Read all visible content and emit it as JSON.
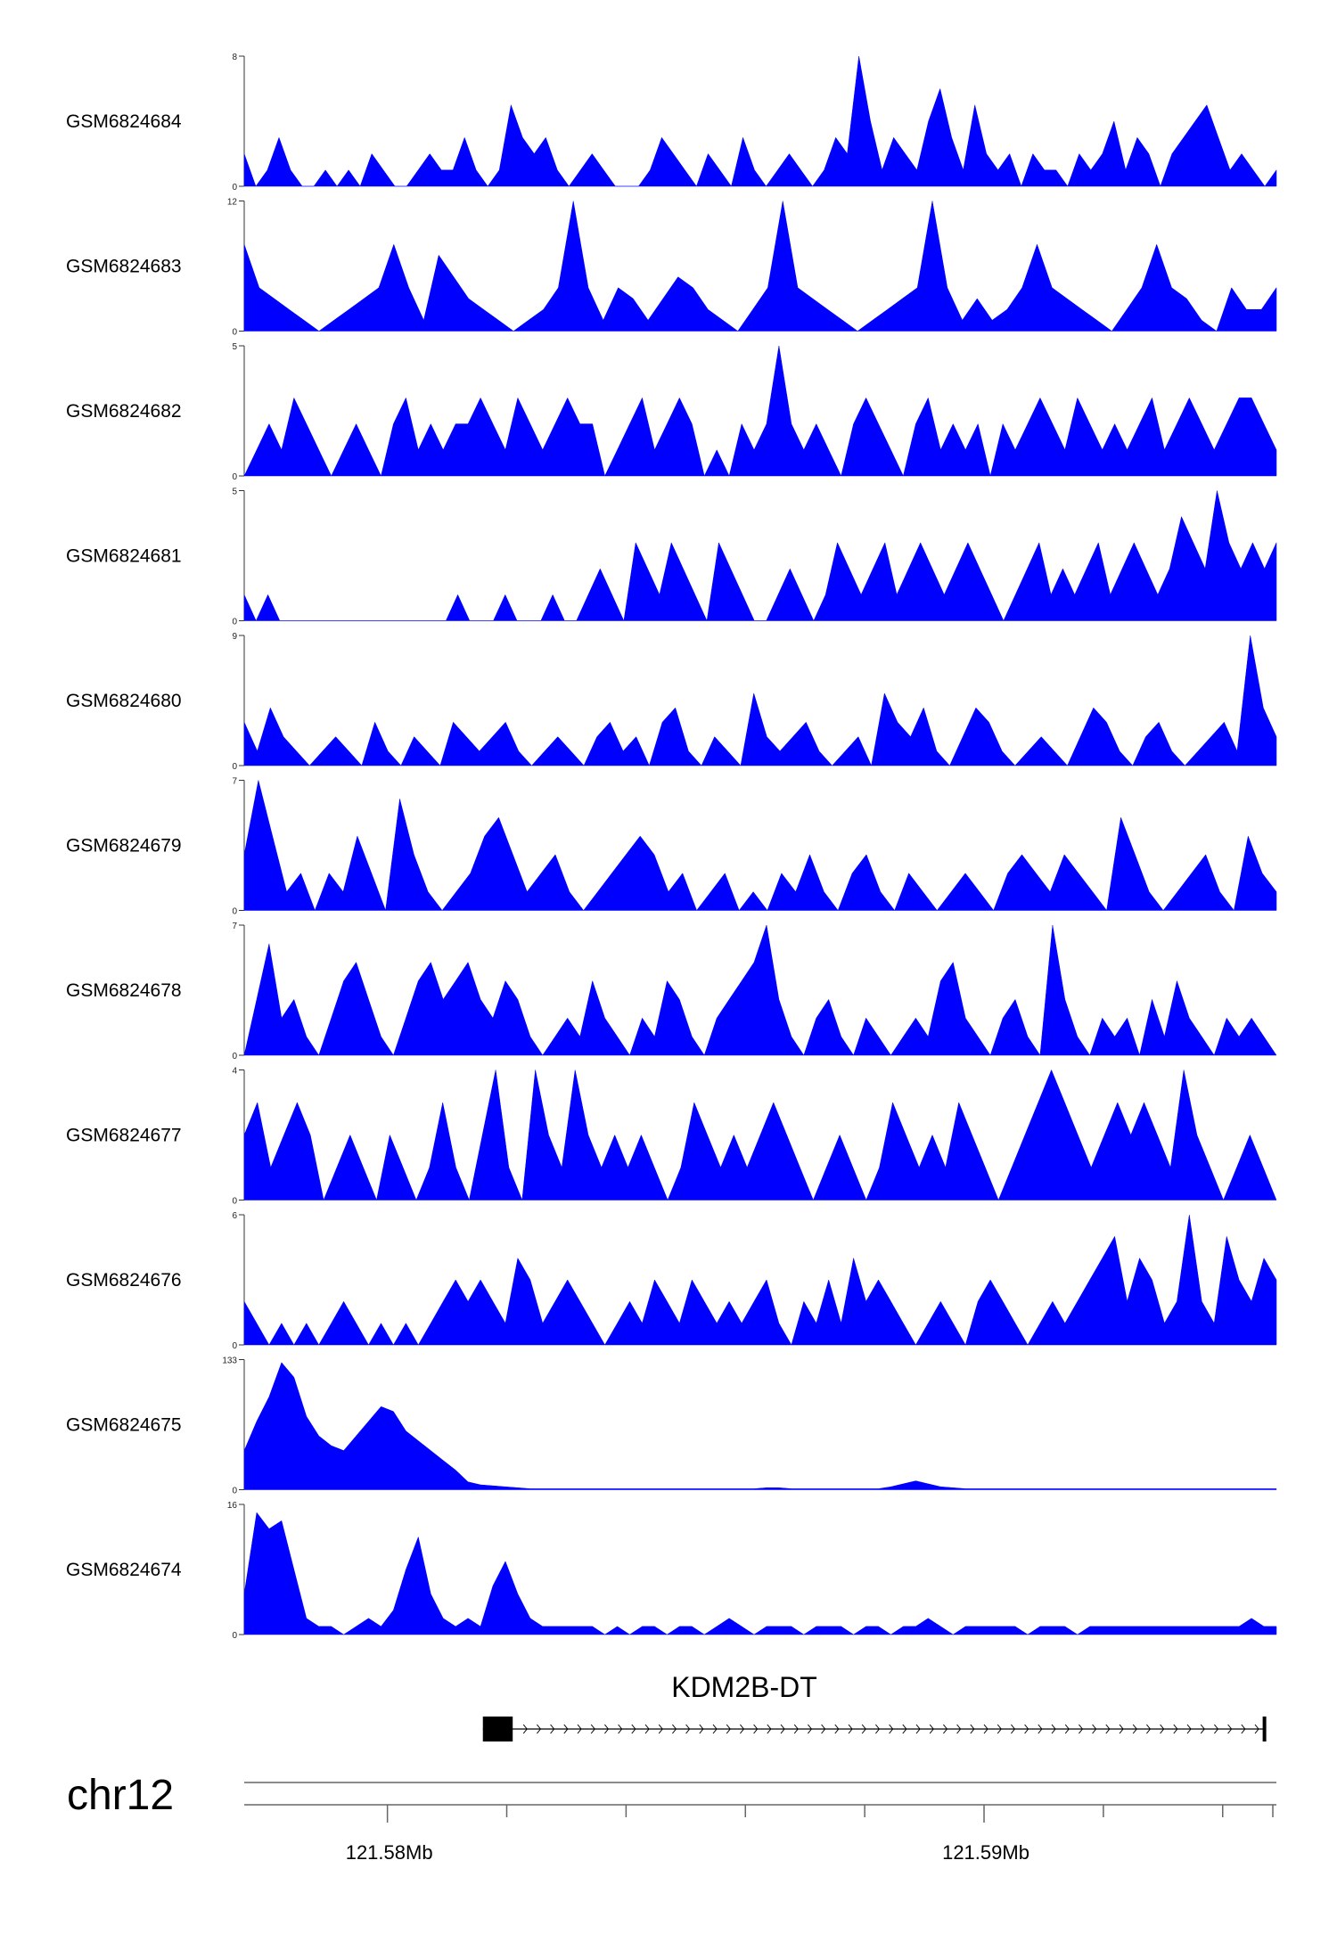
{
  "chart_data": {
    "type": "area",
    "tracks": [
      {
        "name": "GSM6824684",
        "ymax": 8,
        "color": "#0000ff",
        "values": [
          2,
          0,
          1,
          3,
          1,
          0,
          0,
          1,
          0,
          1,
          0,
          2,
          1,
          0,
          0,
          1,
          2,
          1,
          1,
          3,
          1,
          0,
          1,
          5,
          3,
          2,
          3,
          1,
          0,
          1,
          2,
          1,
          0,
          0,
          0,
          1,
          3,
          2,
          1,
          0,
          2,
          1,
          0,
          3,
          1,
          0,
          1,
          2,
          1,
          0,
          1,
          3,
          2,
          8,
          4,
          1,
          3,
          2,
          1,
          4,
          6,
          3,
          1,
          5,
          2,
          1,
          2,
          0,
          2,
          1,
          1,
          0,
          2,
          1,
          2,
          4,
          1,
          3,
          2,
          0,
          2,
          3,
          4,
          5,
          3,
          1,
          2,
          1,
          0,
          1
        ]
      },
      {
        "name": "GSM6824683",
        "ymax": 12,
        "color": "#0000ff",
        "values": [
          8,
          4,
          3,
          2,
          1,
          0,
          1,
          2,
          3,
          4,
          8,
          4,
          1,
          7,
          5,
          3,
          2,
          1,
          0,
          1,
          2,
          4,
          12,
          4,
          1,
          4,
          3,
          1,
          3,
          5,
          4,
          2,
          1,
          0,
          2,
          4,
          12,
          4,
          3,
          2,
          1,
          0,
          1,
          2,
          3,
          4,
          12,
          4,
          1,
          3,
          1,
          2,
          4,
          8,
          4,
          3,
          2,
          1,
          0,
          2,
          4,
          8,
          4,
          3,
          1,
          0,
          4,
          2,
          2,
          4
        ]
      },
      {
        "name": "GSM6824682",
        "ymax": 5,
        "color": "#0000ff",
        "values": [
          0,
          1,
          2,
          1,
          3,
          2,
          1,
          0,
          1,
          2,
          1,
          0,
          2,
          3,
          1,
          2,
          1,
          2,
          2,
          3,
          2,
          1,
          3,
          2,
          1,
          2,
          3,
          2,
          2,
          0,
          1,
          2,
          3,
          1,
          2,
          3,
          2,
          0,
          1,
          0,
          2,
          1,
          2,
          5,
          2,
          1,
          2,
          1,
          0,
          2,
          3,
          2,
          1,
          0,
          2,
          3,
          1,
          2,
          1,
          2,
          0,
          2,
          1,
          2,
          3,
          2,
          1,
          3,
          2,
          1,
          2,
          1,
          2,
          3,
          1,
          2,
          3,
          2,
          1,
          2,
          3,
          3,
          2,
          1
        ]
      },
      {
        "name": "GSM6824681",
        "ymax": 5,
        "color": "#0000ff",
        "values": [
          1,
          0,
          1,
          0,
          0,
          0,
          0,
          0,
          0,
          0,
          0,
          0,
          0,
          0,
          0,
          0,
          0,
          0,
          1,
          0,
          0,
          0,
          1,
          0,
          0,
          0,
          1,
          0,
          0,
          1,
          2,
          1,
          0,
          3,
          2,
          1,
          3,
          2,
          1,
          0,
          3,
          2,
          1,
          0,
          0,
          1,
          2,
          1,
          0,
          1,
          3,
          2,
          1,
          2,
          3,
          1,
          2,
          3,
          2,
          1,
          2,
          3,
          2,
          1,
          0,
          1,
          2,
          3,
          1,
          2,
          1,
          2,
          3,
          1,
          2,
          3,
          2,
          1,
          2,
          4,
          3,
          2,
          5,
          3,
          2,
          3,
          2,
          3
        ]
      },
      {
        "name": "GSM6824680",
        "ymax": 9,
        "color": "#0000ff",
        "values": [
          3,
          1,
          4,
          2,
          1,
          0,
          1,
          2,
          1,
          0,
          3,
          1,
          0,
          2,
          1,
          0,
          3,
          2,
          1,
          2,
          3,
          1,
          0,
          1,
          2,
          1,
          0,
          2,
          3,
          1,
          2,
          0,
          3,
          4,
          1,
          0,
          2,
          1,
          0,
          5,
          2,
          1,
          2,
          3,
          1,
          0,
          1,
          2,
          0,
          5,
          3,
          2,
          4,
          1,
          0,
          2,
          4,
          3,
          1,
          0,
          1,
          2,
          1,
          0,
          2,
          4,
          3,
          1,
          0,
          2,
          3,
          1,
          0,
          1,
          2,
          3,
          1,
          9,
          4,
          2
        ]
      },
      {
        "name": "GSM6824679",
        "ymax": 7,
        "color": "#0000ff",
        "values": [
          3,
          7,
          4,
          1,
          2,
          0,
          2,
          1,
          4,
          2,
          0,
          6,
          3,
          1,
          0,
          1,
          2,
          4,
          5,
          3,
          1,
          2,
          3,
          1,
          0,
          1,
          2,
          3,
          4,
          3,
          1,
          2,
          0,
          1,
          2,
          0,
          1,
          0,
          2,
          1,
          3,
          1,
          0,
          2,
          3,
          1,
          0,
          2,
          1,
          0,
          1,
          2,
          1,
          0,
          2,
          3,
          2,
          1,
          3,
          2,
          1,
          0,
          5,
          3,
          1,
          0,
          1,
          2,
          3,
          1,
          0,
          4,
          2,
          1
        ]
      },
      {
        "name": "GSM6824678",
        "ymax": 7,
        "color": "#0000ff",
        "values": [
          0,
          3,
          6,
          2,
          3,
          1,
          0,
          2,
          4,
          5,
          3,
          1,
          0,
          2,
          4,
          5,
          3,
          4,
          5,
          3,
          2,
          4,
          3,
          1,
          0,
          1,
          2,
          1,
          4,
          2,
          1,
          0,
          2,
          1,
          4,
          3,
          1,
          0,
          2,
          3,
          4,
          5,
          7,
          3,
          1,
          0,
          2,
          3,
          1,
          0,
          2,
          1,
          0,
          1,
          2,
          1,
          4,
          5,
          2,
          1,
          0,
          2,
          3,
          1,
          0,
          7,
          3,
          1,
          0,
          2,
          1,
          2,
          0,
          3,
          1,
          4,
          2,
          1,
          0,
          2,
          1,
          2,
          1,
          0
        ]
      },
      {
        "name": "GSM6824677",
        "ymax": 4,
        "color": "#0000ff",
        "values": [
          2,
          3,
          1,
          2,
          3,
          2,
          0,
          1,
          2,
          1,
          0,
          2,
          1,
          0,
          1,
          3,
          1,
          0,
          2,
          4,
          1,
          0,
          4,
          2,
          1,
          4,
          2,
          1,
          2,
          1,
          2,
          1,
          0,
          1,
          3,
          2,
          1,
          2,
          1,
          2,
          3,
          2,
          1,
          0,
          1,
          2,
          1,
          0,
          1,
          3,
          2,
          1,
          2,
          1,
          3,
          2,
          1,
          0,
          1,
          2,
          3,
          4,
          3,
          2,
          1,
          2,
          3,
          2,
          3,
          2,
          1,
          4,
          2,
          1,
          0,
          1,
          2,
          1,
          0
        ]
      },
      {
        "name": "GSM6824676",
        "ymax": 6,
        "color": "#0000ff",
        "values": [
          2,
          1,
          0,
          1,
          0,
          1,
          0,
          1,
          2,
          1,
          0,
          1,
          0,
          1,
          0,
          1,
          2,
          3,
          2,
          3,
          2,
          1,
          4,
          3,
          1,
          2,
          3,
          2,
          1,
          0,
          1,
          2,
          1,
          3,
          2,
          1,
          3,
          2,
          1,
          2,
          1,
          2,
          3,
          1,
          0,
          2,
          1,
          3,
          1,
          4,
          2,
          3,
          2,
          1,
          0,
          1,
          2,
          1,
          0,
          2,
          3,
          2,
          1,
          0,
          1,
          2,
          1,
          2,
          3,
          4,
          5,
          2,
          4,
          3,
          1,
          2,
          6,
          2,
          1,
          5,
          3,
          2,
          4,
          3
        ]
      },
      {
        "name": "GSM6824675",
        "ymax": 133,
        "color": "#0000ff",
        "values": [
          40,
          70,
          95,
          130,
          115,
          75,
          55,
          45,
          40,
          55,
          70,
          85,
          80,
          60,
          50,
          40,
          30,
          20,
          8,
          5,
          4,
          3,
          2,
          1,
          1,
          1,
          1,
          1,
          1,
          1,
          1,
          1,
          1,
          1,
          1,
          1,
          1,
          1,
          1,
          1,
          1,
          1,
          2,
          2,
          1,
          1,
          1,
          1,
          1,
          1,
          1,
          1,
          3,
          6,
          9,
          6,
          3,
          2,
          1,
          1,
          1,
          1,
          1,
          1,
          1,
          1,
          1,
          1,
          1,
          1,
          1,
          1,
          1,
          1,
          1,
          1,
          1,
          1,
          1,
          1,
          1,
          1,
          1,
          1
        ]
      },
      {
        "name": "GSM6824674",
        "ymax": 16,
        "color": "#0000ff",
        "values": [
          5,
          15,
          13,
          14,
          8,
          2,
          1,
          1,
          0,
          1,
          2,
          1,
          3,
          8,
          12,
          5,
          2,
          1,
          2,
          1,
          6,
          9,
          5,
          2,
          1,
          1,
          1,
          1,
          1,
          0,
          1,
          0,
          1,
          1,
          0,
          1,
          1,
          0,
          1,
          2,
          1,
          0,
          1,
          1,
          1,
          0,
          1,
          1,
          1,
          0,
          1,
          1,
          0,
          1,
          1,
          2,
          1,
          0,
          1,
          1,
          1,
          1,
          1,
          0,
          1,
          1,
          1,
          0,
          1,
          1,
          1,
          1,
          1,
          1,
          1,
          1,
          1,
          1,
          1,
          1,
          1,
          2,
          1,
          1
        ]
      }
    ],
    "gene": {
      "name": "KDM2B-DT",
      "strand": "+",
      "start": 121.5816,
      "end": 121.5947,
      "exon_start": 121.5816,
      "exon_end": 121.5821
    },
    "chromosome": "chr12",
    "x_range": [
      121.5776,
      121.5949
    ],
    "x_ticks": [
      121.58,
      121.59
    ],
    "x_tick_labels": [
      "121.58Mb",
      "121.59Mb"
    ],
    "minor_ticks": [
      121.582,
      121.584,
      121.586,
      121.588,
      121.592,
      121.594
    ]
  }
}
